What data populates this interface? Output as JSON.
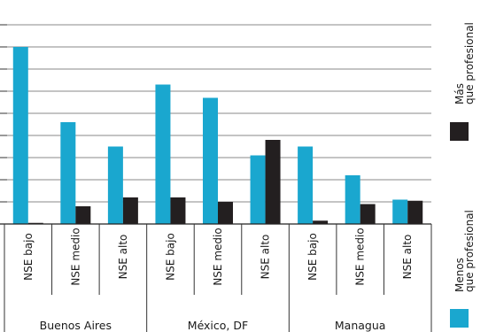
{
  "chart_data": {
    "type": "bar",
    "groups": [
      {
        "label": "Buenos Aires",
        "categories": [
          "NSE bajo",
          "NSE medio",
          "NSE alto"
        ]
      },
      {
        "label": "México, DF",
        "categories": [
          "NSE bajo",
          "NSE medio",
          "NSE alto"
        ]
      },
      {
        "label": "Managua",
        "categories": [
          "NSE bajo",
          "NSE medio",
          "NSE alto"
        ]
      }
    ],
    "series": [
      {
        "name": "Menos que profesional",
        "color": "#1aa7cf",
        "values": [
          0.8,
          0.46,
          0.35,
          0.63,
          0.57,
          0.31,
          0.35,
          0.22,
          0.11
        ]
      },
      {
        "name": "Más que profesional",
        "color": "#231f20",
        "values": [
          0.005,
          0.08,
          0.12,
          0.12,
          0.1,
          0.38,
          0.015,
          0.09,
          0.105
        ]
      }
    ],
    "ylim": [
      0,
      1.0
    ],
    "grid": true,
    "legend_position": "right"
  }
}
